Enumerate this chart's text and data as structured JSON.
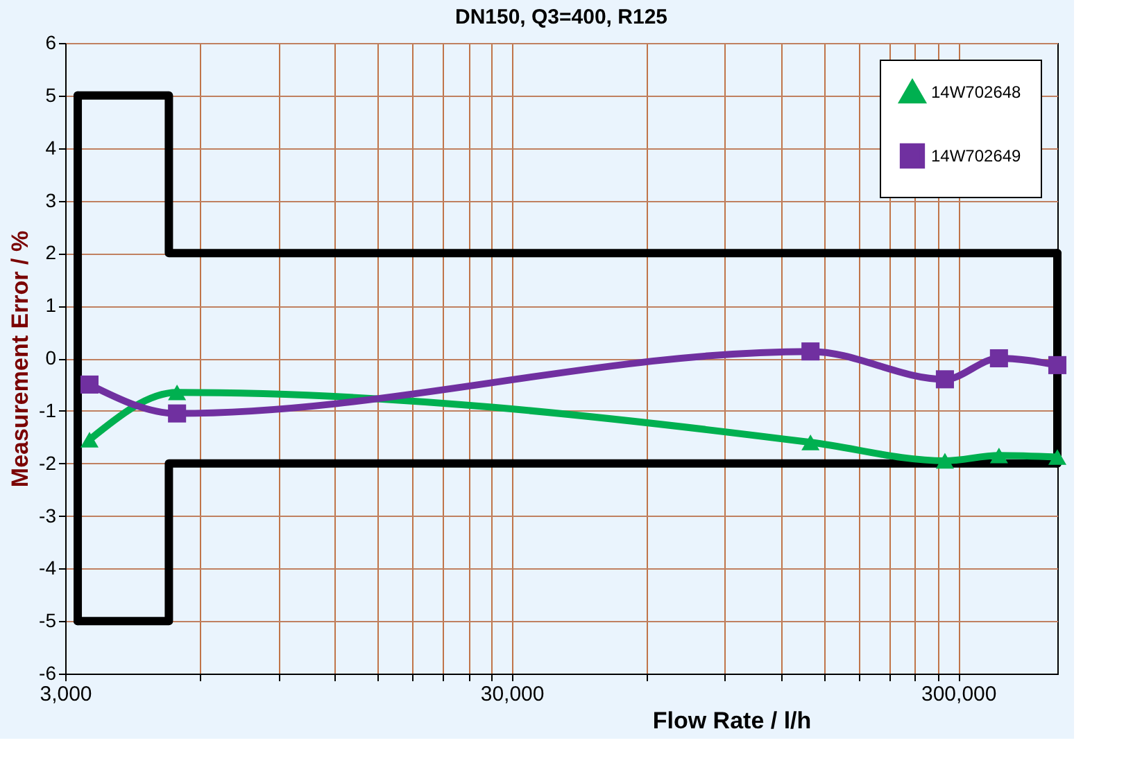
{
  "chart_data": {
    "type": "line",
    "title": "DN150, Q3=400, R125",
    "xlabel": "Flow Rate / l/h",
    "ylabel": "Measurement Error / %",
    "log": "x",
    "grid": true,
    "legend": "top right",
    "line_style": "solid",
    "xlim": [
      3000,
      500000
    ],
    "ylim": [
      -6,
      6
    ],
    "xticks": [
      {
        "value": 3000,
        "label": "3,000"
      },
      {
        "value": 6000,
        "label": null
      },
      {
        "value": 9000,
        "label": null
      },
      {
        "value": 12000,
        "label": null
      },
      {
        "value": 15000,
        "label": null
      },
      {
        "value": 18000,
        "label": null
      },
      {
        "value": 21000,
        "label": null
      },
      {
        "value": 24000,
        "label": null
      },
      {
        "value": 27000,
        "label": null
      },
      {
        "value": 30000,
        "label": "30,000"
      },
      {
        "value": 60000,
        "label": null
      },
      {
        "value": 90000,
        "label": null
      },
      {
        "value": 120000,
        "label": null
      },
      {
        "value": 150000,
        "label": null
      },
      {
        "value": 180000,
        "label": null
      },
      {
        "value": 210000,
        "label": null
      },
      {
        "value": 240000,
        "label": null
      },
      {
        "value": 270000,
        "label": null
      },
      {
        "value": 300000,
        "label": "300,000"
      }
    ],
    "yticks": [
      -6,
      -5,
      -4,
      -3,
      -2,
      -1,
      0,
      1,
      2,
      3,
      4,
      5,
      6
    ],
    "series": [
      {
        "name": "14W702648",
        "color": "#00b050",
        "marker": "triangle",
        "x": [
          3400,
          5340,
          140000,
          280000,
          370000,
          500000
        ],
        "values": [
          -1.55,
          -0.65,
          -1.6,
          -1.95,
          -1.85,
          -1.88
        ]
      },
      {
        "name": "14W702649",
        "color": "#7030a0",
        "marker": "square",
        "x": [
          3400,
          5340,
          140000,
          280000,
          370000,
          500000
        ],
        "values": [
          -0.5,
          -1.05,
          0.13,
          -0.4,
          0.0,
          -0.13
        ]
      },
      {
        "type": "step",
        "color": "#000000",
        "marker": "none",
        "x": [
          3200,
          5120,
          500000
        ],
        "values": [
          5,
          2,
          2
        ]
      },
      {
        "type": "step",
        "color": "#000000",
        "marker": "none",
        "x": [
          3200,
          5120,
          500000
        ],
        "values": [
          -5,
          -2,
          -2
        ]
      },
      {
        "color": "#000000",
        "marker": "none",
        "x": [
          3200,
          3200
        ],
        "values": [
          -5,
          5
        ]
      },
      {
        "color": "#000000",
        "marker": "none",
        "x": [
          500000,
          500000
        ],
        "values": [
          -2,
          2
        ]
      }
    ]
  }
}
